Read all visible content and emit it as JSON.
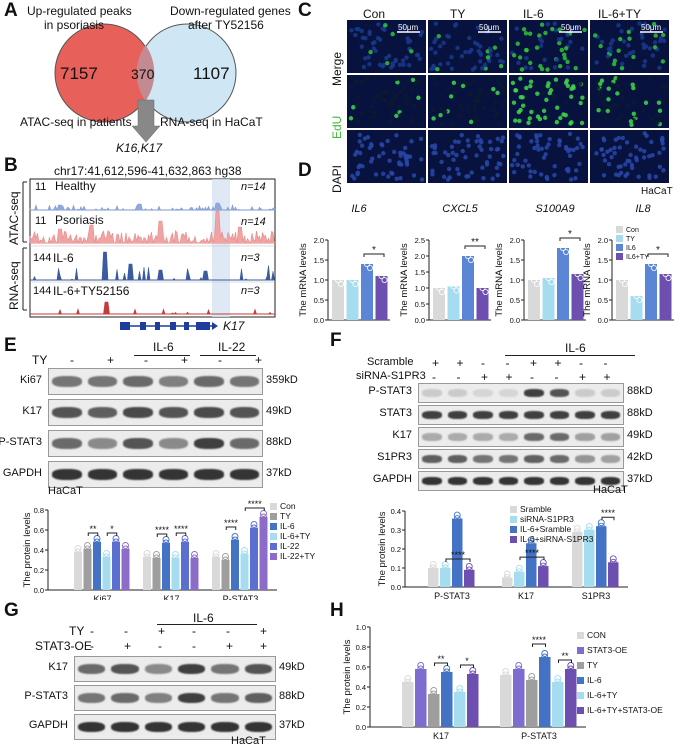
{
  "panels": {
    "A": "A",
    "B": "B",
    "C": "C",
    "D": "D",
    "E": "E",
    "F": "F",
    "G": "G",
    "H": "H"
  },
  "colors": {
    "venn_red": "#e8605a",
    "venn_blue": "#cfe6f4",
    "legend_con": "#d9d9d9",
    "legend_ty": "#a6dcef",
    "legend_il6": "#4472c4",
    "legend_il6ty": "#6d4fb0",
    "bar_con": "#d9d9d9",
    "bar_ty": "#a6dcef",
    "bar_il6": "#5b86d6",
    "bar_il6ty": "#6d4fb0"
  },
  "panelA": {
    "up_label_1": "Up-regulated peaks",
    "up_label_2": "in psoriasis",
    "down_label_1": "Down-regulated genes",
    "down_label_2": "after TY52156",
    "left_count": "7157",
    "overlap_count": "370",
    "right_count": "1107",
    "atac_label": "ATAC-seq in patients",
    "rna_label": "RNA-seq in HaCaT",
    "genes": "K16,K17"
  },
  "panelB": {
    "coords": "chr17:41,612,596-41,632,863 hg38",
    "atac_group": "ATAC-seq",
    "rna_group": "RNA-seq",
    "tracks": [
      {
        "scale": "11",
        "name": "Healthy",
        "n": "n=14"
      },
      {
        "scale": "11",
        "name": "Psoriasis",
        "n": "n=14"
      },
      {
        "scale": "144",
        "name": "IL-6",
        "n": "n=3"
      },
      {
        "scale": "144",
        "name": "IL-6+TY52156",
        "n": "n=3"
      }
    ],
    "gene": "K17"
  },
  "panelC": {
    "columns": [
      "Con",
      "TY",
      "IL-6",
      "IL-6+TY"
    ],
    "rows": [
      "Merge",
      "EdU",
      "DAPI"
    ],
    "scalebar": "50μm",
    "cell": "HaCaT"
  },
  "panelD": {
    "genes": [
      "IL6",
      "CXCL5",
      "S100A9",
      "IL8"
    ],
    "ylabel": "The  mRNA levels",
    "legend": [
      "Con",
      "TY",
      "IL6",
      "IL6+TY"
    ],
    "sig": [
      "*",
      "**",
      "*",
      "*"
    ],
    "yticks": [
      [
        "0.0",
        "0.5",
        "1.0",
        "1.5",
        "2.0"
      ],
      [
        "0.0",
        "0.5",
        "1.0",
        "1.5",
        "2.0",
        "2.5"
      ],
      [
        "0.0",
        "0.5",
        "1.0",
        "1.5",
        "2.0"
      ],
      [
        "0.0",
        "0.5",
        "1.0",
        "1.5",
        "2.0"
      ]
    ]
  },
  "chart_data": [
    {
      "type": "bar",
      "title": "IL6",
      "ylabel": "The  mRNA levels",
      "ylim": [
        0,
        2.0
      ],
      "categories": [
        "Con",
        "TY",
        "IL6",
        "IL6+TY"
      ],
      "values": [
        1.0,
        1.0,
        1.4,
        1.1
      ]
    },
    {
      "type": "bar",
      "title": "CXCL5",
      "ylabel": "The  mRNA levels",
      "ylim": [
        0,
        2.5
      ],
      "categories": [
        "Con",
        "TY",
        "IL6",
        "IL6+TY"
      ],
      "values": [
        1.0,
        1.05,
        2.0,
        1.0
      ]
    },
    {
      "type": "bar",
      "title": "S100A9",
      "ylabel": "The  mRNA levels",
      "ylim": [
        0,
        2.0
      ],
      "categories": [
        "Con",
        "TY",
        "IL6",
        "IL6+TY"
      ],
      "values": [
        1.0,
        1.05,
        1.8,
        1.15
      ]
    },
    {
      "type": "bar",
      "title": "IL8",
      "ylabel": "The  mRNA levels",
      "ylim": [
        0,
        2.0
      ],
      "categories": [
        "Con",
        "TY",
        "IL6",
        "IL6+TY"
      ],
      "values": [
        1.0,
        0.6,
        1.4,
        1.15
      ]
    },
    {
      "type": "bar",
      "ylabel": "The protein levels",
      "ylim": [
        0,
        0.8
      ],
      "categories": [
        "Ki67",
        "K17",
        "P-STAT3"
      ],
      "series": [
        {
          "name": "Con",
          "values": [
            0.38,
            0.33,
            0.33
          ]
        },
        {
          "name": "TY",
          "values": [
            0.41,
            0.32,
            0.3
          ]
        },
        {
          "name": "IL-6",
          "values": [
            0.48,
            0.47,
            0.5
          ]
        },
        {
          "name": "IL-6+TY",
          "values": [
            0.33,
            0.32,
            0.36
          ]
        },
        {
          "name": "IL-22",
          "values": [
            0.48,
            0.48,
            0.62
          ]
        },
        {
          "name": "IL-22+TY",
          "values": [
            0.41,
            0.32,
            0.73
          ]
        }
      ]
    },
    {
      "type": "bar",
      "ylabel": "The protein levels",
      "ylim": [
        0,
        0.4
      ],
      "categories": [
        "P-STAT3",
        "K17",
        "S1PR3"
      ],
      "series": [
        {
          "name": "Sramble",
          "values": [
            0.1,
            0.05,
            0.29
          ]
        },
        {
          "name": "siRNA-S1PR3",
          "values": [
            0.1,
            0.08,
            0.3
          ]
        },
        {
          "name": "IL-6+Sramble",
          "values": [
            0.36,
            0.23,
            0.32
          ]
        },
        {
          "name": "IL-6+siRNA-S1PR3",
          "values": [
            0.09,
            0.11,
            0.13
          ]
        }
      ]
    },
    {
      "type": "bar",
      "ylabel": "The protein levels",
      "ylim": [
        0,
        1.0
      ],
      "categories": [
        "K17",
        "P-STAT3"
      ],
      "series": [
        {
          "name": "CON",
          "values": [
            0.45,
            0.52
          ]
        },
        {
          "name": "STAT3-OE",
          "values": [
            0.58,
            0.58
          ]
        },
        {
          "name": "TY",
          "values": [
            0.33,
            0.47
          ]
        },
        {
          "name": "IL-6",
          "values": [
            0.55,
            0.7
          ]
        },
        {
          "name": "IL-6+TY",
          "values": [
            0.35,
            0.45
          ]
        },
        {
          "name": "IL-6+TY+STAT3-OE",
          "values": [
            0.53,
            0.58
          ]
        }
      ]
    }
  ],
  "panelE": {
    "header_ty": "TY",
    "header_il6": "IL-6",
    "header_il22": "IL-22",
    "signs": [
      "-",
      "+",
      "-",
      "+",
      "-",
      "+"
    ],
    "bands": [
      {
        "name": "Ki67",
        "size": "359kD"
      },
      {
        "name": "K17",
        "size": "49kD"
      },
      {
        "name": "P-STAT3",
        "size": "88kD"
      },
      {
        "name": "GAPDH",
        "size": "37kD"
      }
    ],
    "cell": "HaCaT",
    "ylabel": "The protein levels",
    "yticks": [
      "0.0",
      "0.2",
      "0.4",
      "0.6",
      "0.8"
    ],
    "legend": [
      "Con",
      "TY",
      "IL-6",
      "IL-6+TY",
      "IL-22",
      "IL-22+TY"
    ],
    "sig": [
      "**",
      "*",
      "****",
      "****",
      "****",
      "****"
    ]
  },
  "panelF": {
    "header_il6": "IL-6",
    "row1_label": "Scramble",
    "row1_signs": [
      "+",
      "+",
      "-",
      "-",
      "+",
      "+",
      "-",
      "-"
    ],
    "row2_label": "siRNA-S1PR3",
    "row2_signs": [
      "-",
      "-",
      "+",
      "+",
      "-",
      "-",
      "+",
      "+"
    ],
    "bands": [
      {
        "name": "P-STAT3",
        "size": "88kD"
      },
      {
        "name": "STAT3",
        "size": "88kD"
      },
      {
        "name": "K17",
        "size": "49kD"
      },
      {
        "name": "S1PR3",
        "size": "42kD"
      },
      {
        "name": "GAPDH",
        "size": "37kD"
      }
    ],
    "cell": "HaCaT",
    "ylabel": "The protein levels",
    "yticks": [
      "0.0",
      "0.1",
      "0.2",
      "0.3",
      "0.4"
    ],
    "legend": [
      "Sramble",
      "siRNA-S1PR3",
      "IL-6+Sramble",
      "IL-6+siRNA-S1PR3"
    ],
    "sig": [
      "****",
      "****",
      "****"
    ]
  },
  "panelG": {
    "header_il6": "IL-6",
    "row1_label": "TY",
    "row1_signs": [
      "-",
      "-",
      "+",
      "-",
      "-",
      "+"
    ],
    "row2_label": "STAT3-OE",
    "row2_signs": [
      "-",
      "+",
      "-",
      "-",
      "+",
      "+"
    ],
    "bands": [
      {
        "name": "K17",
        "size": "49kD"
      },
      {
        "name": "P-STAT3",
        "size": "88kD"
      },
      {
        "name": "GAPDH",
        "size": "37kD"
      }
    ],
    "cell": "HaCaT"
  },
  "panelH": {
    "ylabel": "The protein levels",
    "yticks": [
      "0.0",
      "0.2",
      "0.4",
      "0.6",
      "0.8",
      "1.0"
    ],
    "legend": [
      "CON",
      "STAT3-OE",
      "TY",
      "IL-6",
      "IL-6+TY",
      "IL-6+TY+STAT3-OE"
    ],
    "sig": [
      "**",
      "*",
      "****",
      "**"
    ]
  }
}
